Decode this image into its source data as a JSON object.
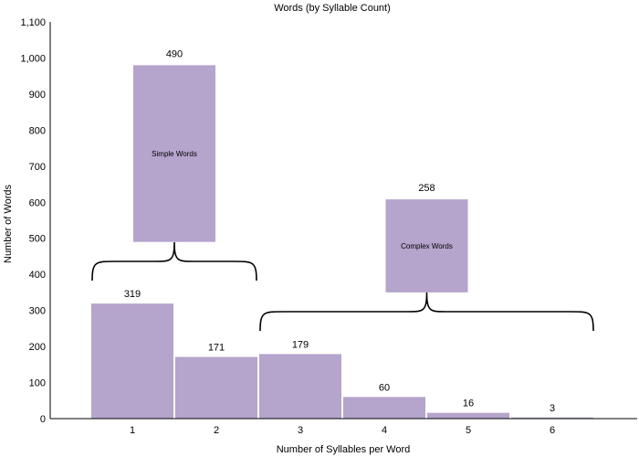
{
  "chart_data": {
    "type": "bar",
    "title": "Words (by Syllable Count)",
    "xlabel": "Number of Syllables per Word",
    "ylabel": "Number of Words",
    "categories": [
      "1",
      "2",
      "3",
      "4",
      "5",
      "6"
    ],
    "values": [
      319,
      171,
      179,
      60,
      16,
      3
    ],
    "ylim": [
      0,
      1100
    ],
    "yticks": [
      0,
      100,
      200,
      300,
      400,
      500,
      600,
      700,
      800,
      900,
      1000,
      1100
    ],
    "ytick_labels": [
      "0",
      "100",
      "200",
      "300",
      "400",
      "500",
      "600",
      "700",
      "800",
      "900",
      "1,000",
      "1,100"
    ],
    "bar_color": "#b5a4cc",
    "grid": false,
    "legend": "none",
    "groups": [
      {
        "label": "Simple Words",
        "total": 490,
        "total_label": "490",
        "range": [
          490,
          980
        ],
        "covers_categories": [
          "1",
          "2"
        ]
      },
      {
        "label": "Complex Words",
        "total": 258,
        "total_label": "258",
        "range": [
          350,
          608
        ],
        "covers_categories": [
          "3",
          "4",
          "5",
          "6"
        ]
      }
    ]
  }
}
